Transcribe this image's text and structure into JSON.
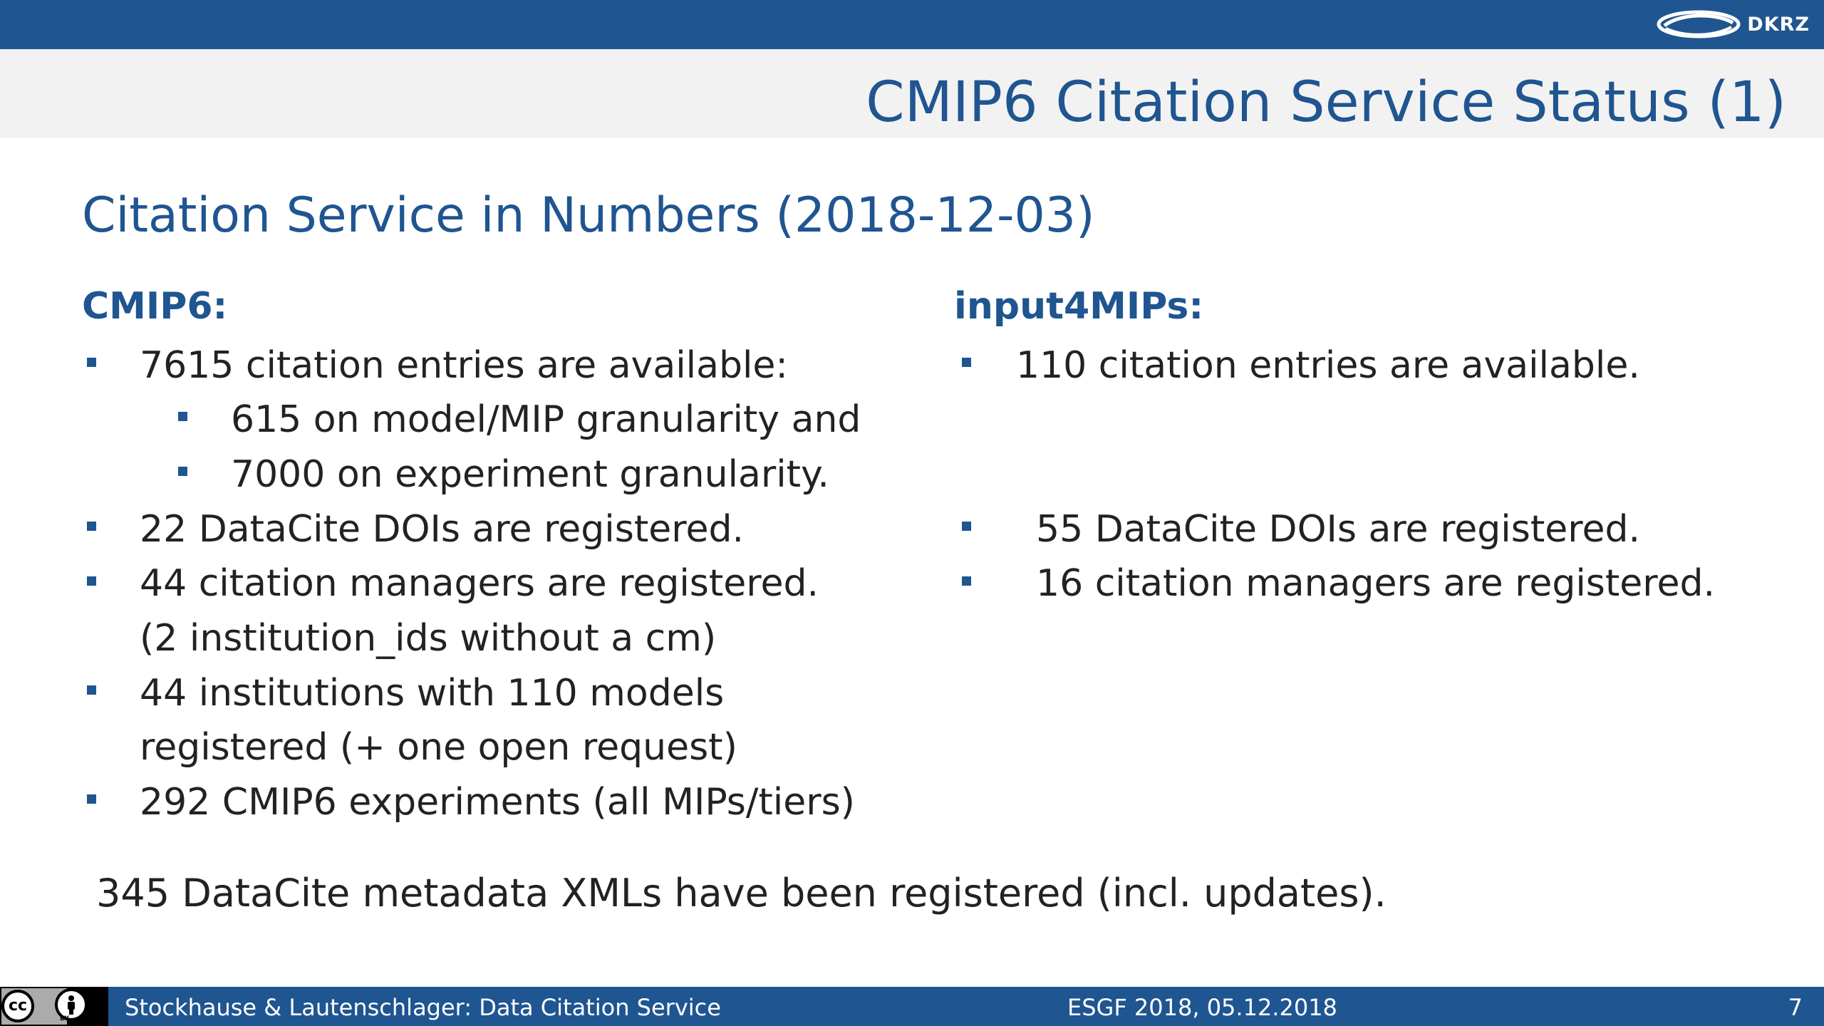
{
  "header": {
    "logo_text": "DKRZ",
    "title": "CMIP6 Citation Service Status (1)"
  },
  "subtitle": "Citation Service in Numbers (2018-12-03)",
  "left_column": {
    "heading": "CMIP6:",
    "items": [
      "7615 citation entries are available:",
      "615 on model/MIP granularity and",
      "7000 on experiment granularity.",
      "22 DataCite DOIs are registered.",
      "44 citation managers are registered.",
      "(2 institution_ids without a cm)",
      "44 institutions with 110 models",
      "registered (+ one open request)",
      "292 CMIP6 experiments (all MIPs/tiers)"
    ]
  },
  "right_column": {
    "heading": "input4MIPs:",
    "items": [
      "110 citation entries are available.",
      "55 DataCite DOIs are registered.",
      "16 citation managers are registered."
    ]
  },
  "footer_note": "345 DataCite metadata XMLs have been registered (incl. updates).",
  "footer": {
    "license_cc": "cc",
    "license_by": "BY",
    "authors": "Stockhause & Lautenschlager: Data Citation Service",
    "event": "ESGF 2018, 05.12.2018",
    "page_number": "7"
  },
  "colors": {
    "brand_blue": "#1f5590",
    "title_band": "#f2f2f2",
    "body_text": "#222222"
  },
  "icons": [
    "dkrz-logo-icon",
    "creative-commons-icon",
    "attribution-icon",
    "square-bullet-icon"
  ]
}
